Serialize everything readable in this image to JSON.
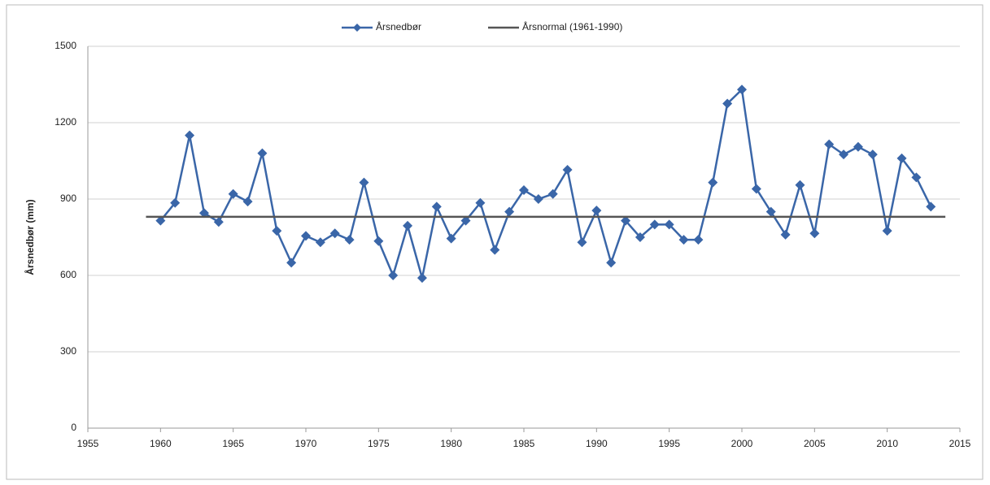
{
  "chart_data": {
    "type": "line",
    "y_label": "Årsnedbør (mm)",
    "series": [
      {
        "name": "Årsnedbør",
        "color": "#3a66a8",
        "marker": "diamond",
        "x": [
          1960,
          1961,
          1962,
          1963,
          1964,
          1965,
          1966,
          1967,
          1968,
          1969,
          1970,
          1971,
          1972,
          1973,
          1974,
          1975,
          1976,
          1977,
          1978,
          1979,
          1980,
          1981,
          1982,
          1983,
          1984,
          1985,
          1986,
          1987,
          1988,
          1989,
          1990,
          1991,
          1992,
          1993,
          1994,
          1995,
          1996,
          1997,
          1998,
          1999,
          2000,
          2001,
          2002,
          2003,
          2004,
          2005,
          2006,
          2007,
          2008,
          2009,
          2010,
          2011,
          2012,
          2013
        ],
        "values": [
          815,
          885,
          1150,
          845,
          810,
          920,
          890,
          1080,
          775,
          650,
          755,
          730,
          765,
          740,
          965,
          735,
          600,
          795,
          590,
          870,
          745,
          815,
          885,
          700,
          850,
          935,
          900,
          920,
          1015,
          730,
          855,
          650,
          815,
          750,
          800,
          800,
          740,
          740,
          965,
          1275,
          1330,
          940,
          850,
          760,
          955,
          765,
          1115,
          1075,
          1105,
          1075,
          775,
          1060,
          985,
          870
        ]
      },
      {
        "name": "Årsnormal (1961-1990)",
        "color": "#555555",
        "marker": "none",
        "x": [
          1959,
          2014
        ],
        "values": [
          830,
          830
        ]
      }
    ],
    "xlim": [
      1955,
      2015
    ],
    "xticks": [
      1955,
      1960,
      1965,
      1970,
      1975,
      1980,
      1985,
      1990,
      1995,
      2000,
      2005,
      2010,
      2015
    ],
    "ylim": [
      0,
      1500
    ],
    "yticks": [
      0,
      300,
      600,
      900,
      1200,
      1500
    ],
    "grid": true,
    "legend": "top"
  }
}
